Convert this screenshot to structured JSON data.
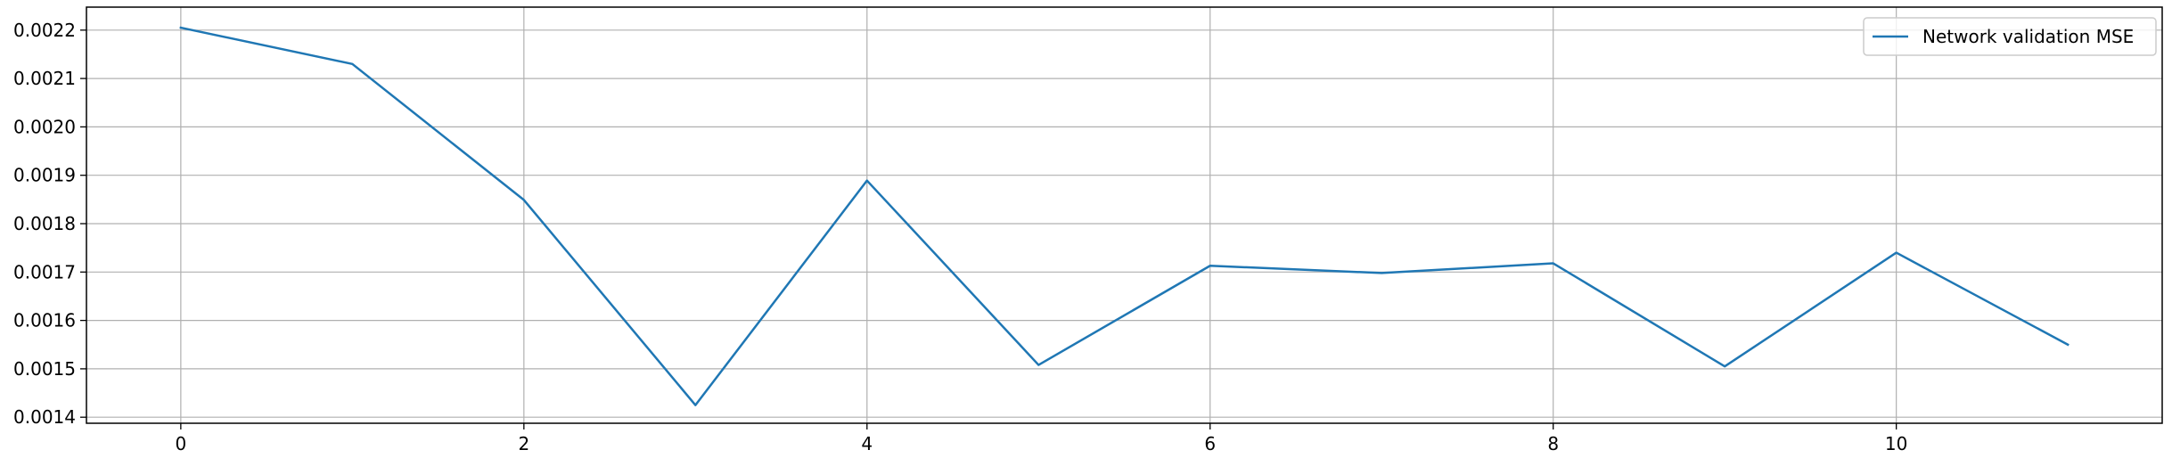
{
  "chart_data": {
    "type": "line",
    "title": "",
    "xlabel": "",
    "ylabel": "",
    "x": [
      0,
      1,
      2,
      3,
      4,
      5,
      6,
      7,
      8,
      9,
      10,
      11
    ],
    "series": [
      {
        "name": "Network validation MSE",
        "values": [
          0.002205,
          0.00213,
          0.001849,
          0.001425,
          0.001889,
          0.001508,
          0.001713,
          0.001698,
          0.001718,
          0.001505,
          0.00174,
          0.00155
        ],
        "color": "#1f77b4"
      }
    ],
    "xlim": [
      -0.55,
      11.55
    ],
    "ylim": [
      0.0013875,
      0.0022475
    ],
    "xticks": [
      0,
      2,
      4,
      6,
      8,
      10
    ],
    "xtick_labels": [
      "0",
      "2",
      "4",
      "6",
      "8",
      "10"
    ],
    "yticks": [
      0.0014,
      0.0015,
      0.0016,
      0.0017,
      0.0018,
      0.0019,
      0.002,
      0.0021,
      0.0022
    ],
    "ytick_labels": [
      "0.0014",
      "0.0015",
      "0.0016",
      "0.0017",
      "0.0018",
      "0.0019",
      "0.0020",
      "0.0021",
      "0.0022"
    ],
    "grid": true,
    "legend_position": "top-right"
  }
}
